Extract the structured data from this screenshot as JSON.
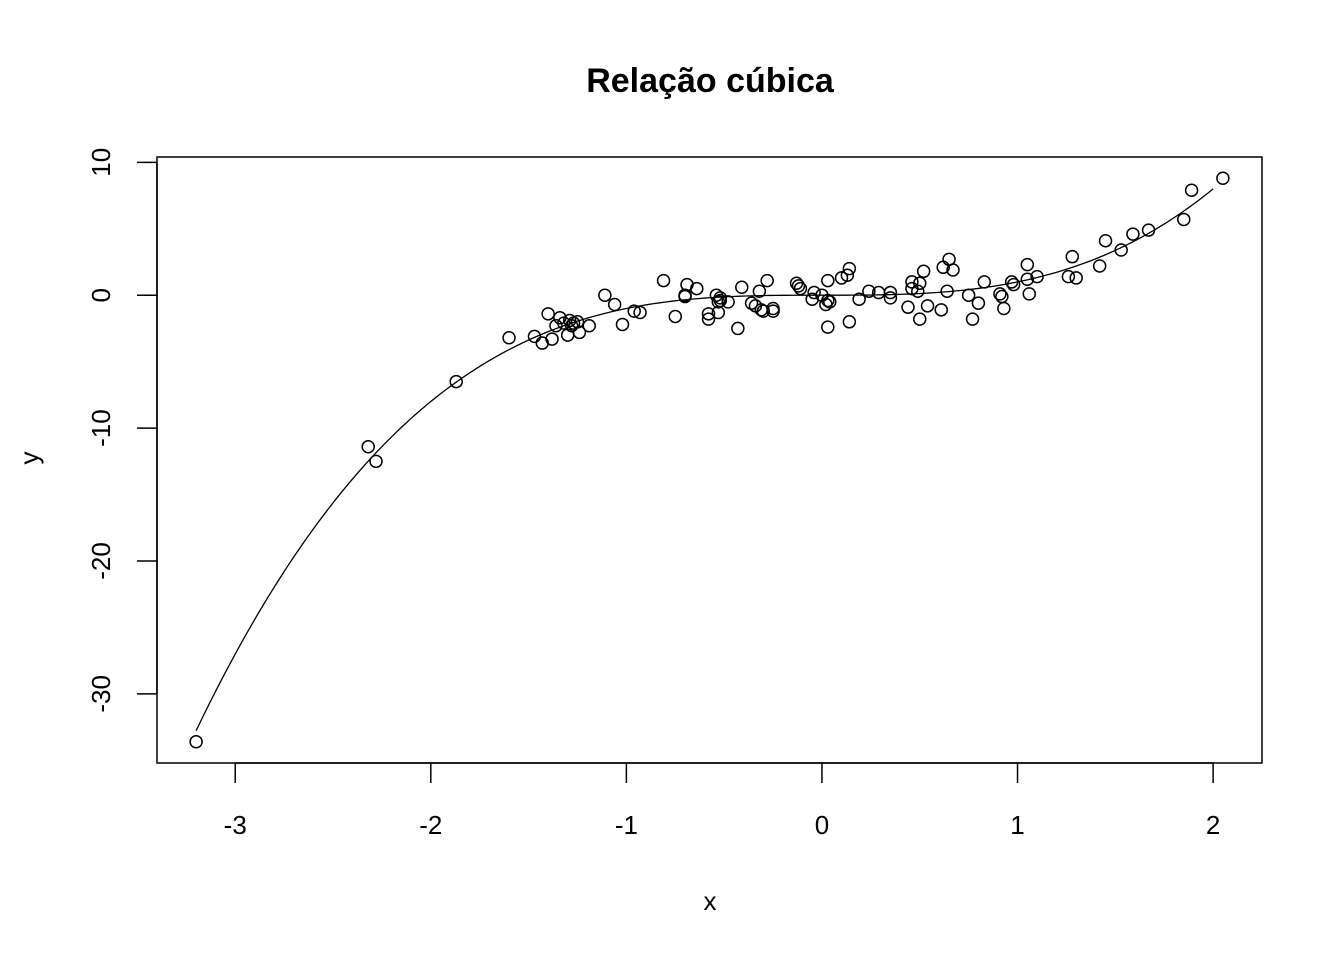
{
  "chart_data": {
    "type": "scatter",
    "title": "Relação cúbica",
    "xlabel": "x",
    "ylabel": "y",
    "xlim": [
      -3.4,
      2.25
    ],
    "ylim": [
      -35.2,
      10.4
    ],
    "xticks": [
      -3,
      -2,
      -1,
      0,
      1,
      2
    ],
    "yticks": [
      -30,
      -20,
      -10,
      0,
      10
    ],
    "grid": false,
    "legend": "none",
    "colors": {
      "points": "#000000",
      "line": "#000000",
      "axes": "#000000",
      "background": "#ffffff"
    },
    "series": [
      {
        "kind": "points",
        "marker": "open-circle",
        "x": [
          -3.2,
          -2.32,
          -2.28,
          -1.87,
          -1.6,
          -1.47,
          -1.43,
          -1.4,
          -1.38,
          -1.36,
          -1.34,
          -1.32,
          -1.3,
          -1.29,
          -1.28,
          -1.27,
          -1.25,
          -1.24,
          -1.19,
          -1.11,
          -1.06,
          -1.02,
          -0.96,
          -0.93,
          -0.81,
          -0.75,
          -0.7,
          -0.7,
          -0.69,
          -0.64,
          -0.58,
          -0.58,
          -0.54,
          -0.53,
          -0.53,
          -0.52,
          -0.52,
          -0.48,
          -0.43,
          -0.41,
          -0.36,
          -0.34,
          -0.32,
          -0.31,
          -0.3,
          -0.28,
          -0.25,
          -0.25,
          -0.13,
          -0.12,
          -0.11,
          -0.05,
          -0.04,
          0.0,
          0.02,
          0.03,
          0.03,
          0.03,
          0.04,
          0.1,
          0.13,
          0.14,
          0.14,
          0.19,
          0.24,
          0.29,
          0.35,
          0.35,
          0.44,
          0.46,
          0.46,
          0.49,
          0.5,
          0.5,
          0.52,
          0.54,
          0.61,
          0.62,
          0.64,
          0.65,
          0.67,
          0.75,
          0.77,
          0.8,
          0.83,
          0.91,
          0.92,
          0.93,
          0.97,
          0.98,
          1.05,
          1.05,
          1.06,
          1.1,
          1.26,
          1.28,
          1.3,
          1.42,
          1.45,
          1.53,
          1.59,
          1.67,
          1.85,
          1.89,
          2.05
        ],
        "y": [
          -33.6,
          -11.4,
          -12.5,
          -6.5,
          -3.2,
          -3.1,
          -3.6,
          -1.4,
          -3.3,
          -2.3,
          -1.7,
          -2.1,
          -3.0,
          -1.9,
          -2.3,
          -2.1,
          -2.0,
          -2.8,
          -2.3,
          0.0,
          -0.7,
          -2.2,
          -1.2,
          -1.3,
          1.1,
          -1.6,
          -0.1,
          0.0,
          0.8,
          0.5,
          -1.4,
          -1.8,
          0.0,
          -1.3,
          -0.5,
          -0.4,
          -0.2,
          -0.5,
          -2.5,
          0.6,
          -0.6,
          -0.8,
          0.3,
          -1.1,
          -1.2,
          1.1,
          -1.2,
          -1.0,
          0.9,
          0.7,
          0.5,
          -0.3,
          0.2,
          0.0,
          -0.7,
          -0.4,
          1.1,
          -2.4,
          -0.5,
          1.3,
          1.5,
          2.0,
          -2.0,
          -0.3,
          0.3,
          0.2,
          0.2,
          -0.2,
          -0.9,
          1.0,
          0.5,
          0.3,
          0.9,
          -1.8,
          1.8,
          -0.8,
          -1.1,
          2.1,
          0.3,
          2.7,
          1.9,
          0.0,
          -1.8,
          -0.6,
          1.0,
          0.1,
          -0.1,
          -1.0,
          1.0,
          0.8,
          2.3,
          1.2,
          0.1,
          1.4,
          1.4,
          2.9,
          1.3,
          2.2,
          4.1,
          3.4,
          4.6,
          4.9,
          5.7,
          7.9,
          8.8
        ]
      },
      {
        "kind": "line",
        "name": "",
        "function": "y = x^3",
        "x_range": [
          -3.2,
          2.0
        ]
      }
    ]
  }
}
